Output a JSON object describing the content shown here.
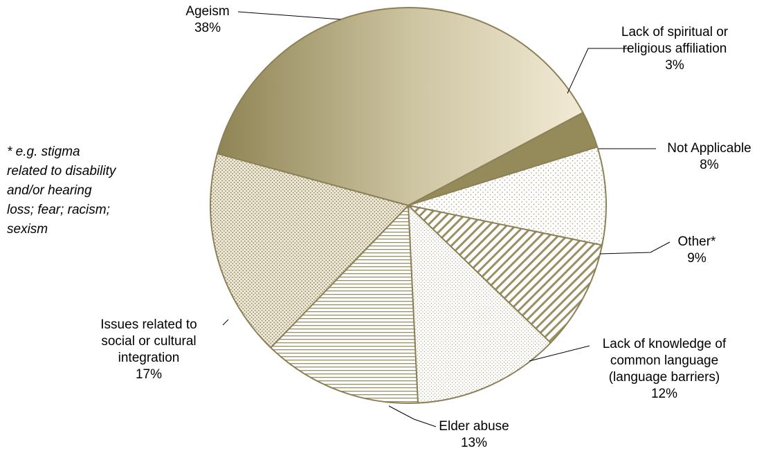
{
  "chart_data": {
    "type": "pie",
    "slices": [
      {
        "label": [
          "Lack of spiritual or",
          "religious affiliation"
        ],
        "value": 3,
        "pct": "3%",
        "fill": "#948a5a"
      },
      {
        "label": [
          "Not Applicable"
        ],
        "value": 8,
        "pct": "8%",
        "fill": "pattern:dots-sparse"
      },
      {
        "label": [
          "Other*"
        ],
        "value": 9,
        "pct": "9%",
        "fill": "pattern:diagonal"
      },
      {
        "label": [
          "Lack of knowledge of",
          "common language",
          "(language barriers)"
        ],
        "value": 12,
        "pct": "12%",
        "fill": "pattern:dots-fine"
      },
      {
        "label": [
          "Elder abuse"
        ],
        "value": 13,
        "pct": "13%",
        "fill": "pattern:horizontal"
      },
      {
        "label": [
          "Issues related to",
          "social or cultural",
          "integration"
        ],
        "value": 17,
        "pct": "17%",
        "fill": "pattern:crosshatch"
      },
      {
        "label": [
          "Ageism"
        ],
        "value": 38,
        "pct": "38%",
        "fill": "gradient:khaki"
      }
    ],
    "legend": "none",
    "colors": {
      "outline": "#8c8057",
      "ageism_dark": "#8f8454",
      "ageism_light": "#f2ead5",
      "pattern": "#9a8f63"
    }
  },
  "footnote": [
    "* e.g. stigma",
    "related to disability",
    "and/or hearing",
    "loss; fear; racism;",
    "sexism"
  ]
}
